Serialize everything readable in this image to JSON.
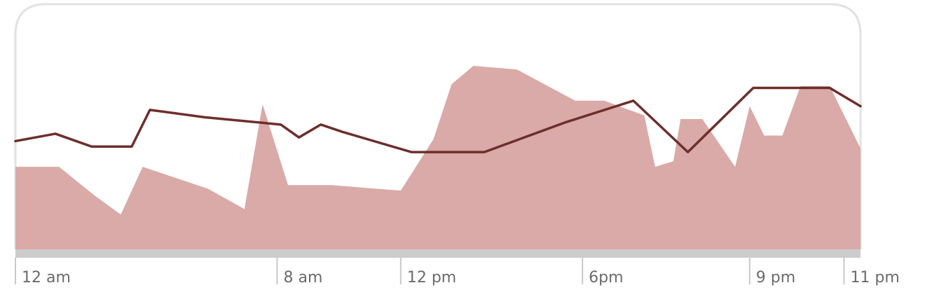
{
  "chart_data": {
    "type": "area",
    "title": "",
    "xlabel": "",
    "ylabel": "",
    "x_unit": "hours after midnight",
    "xlim": [
      0,
      23.25
    ],
    "ylim": [
      0,
      100
    ],
    "grid": false,
    "legend": "none",
    "x_ticks": [
      {
        "x": 0,
        "label": "12 am"
      },
      {
        "x": 7.2,
        "label": "8 am"
      },
      {
        "x": 10.6,
        "label": "12 pm"
      },
      {
        "x": 15.6,
        "label": "6pm"
      },
      {
        "x": 20.2,
        "label": "9 pm"
      },
      {
        "x": 22.95,
        "label": "11 pm"
      }
    ],
    "series": [
      {
        "kind": "area",
        "color": "#d9aaa7",
        "points": [
          [
            0,
            45
          ],
          [
            1.2,
            45
          ],
          [
            2.2,
            29
          ],
          [
            2.9,
            19
          ],
          [
            3.5,
            45
          ],
          [
            5.3,
            33
          ],
          [
            6.3,
            22
          ],
          [
            6.8,
            79
          ],
          [
            7.5,
            35
          ],
          [
            8.7,
            35
          ],
          [
            10.6,
            32
          ],
          [
            11.5,
            60
          ],
          [
            12.0,
            90
          ],
          [
            12.6,
            100
          ],
          [
            13.8,
            98
          ],
          [
            15.4,
            81
          ],
          [
            16.2,
            81
          ],
          [
            17.3,
            73
          ],
          [
            17.6,
            45
          ],
          [
            18.1,
            48
          ],
          [
            18.3,
            71
          ],
          [
            18.9,
            71
          ],
          [
            19.8,
            45
          ],
          [
            20.2,
            78
          ],
          [
            20.6,
            62
          ],
          [
            21.1,
            62
          ],
          [
            21.6,
            89
          ],
          [
            22.4,
            89
          ],
          [
            23.25,
            55
          ]
        ]
      },
      {
        "kind": "line",
        "color": "#6e2e2c",
        "points": [
          [
            0,
            59
          ],
          [
            1.1,
            63
          ],
          [
            2.1,
            56
          ],
          [
            3.2,
            56
          ],
          [
            3.7,
            76
          ],
          [
            5.2,
            72
          ],
          [
            7.3,
            68
          ],
          [
            7.8,
            61
          ],
          [
            8.4,
            68
          ],
          [
            9.0,
            64
          ],
          [
            10.9,
            53
          ],
          [
            12.9,
            53
          ],
          [
            15.1,
            69
          ],
          [
            17.0,
            81
          ],
          [
            18.5,
            53
          ],
          [
            20.3,
            88
          ],
          [
            22.4,
            88
          ],
          [
            23.25,
            78
          ]
        ]
      }
    ]
  },
  "colors": {
    "frame": "#e2e2e2",
    "baseline": "#cccccc",
    "tick": "#c9c9c9",
    "label": "#6b6b6b"
  }
}
